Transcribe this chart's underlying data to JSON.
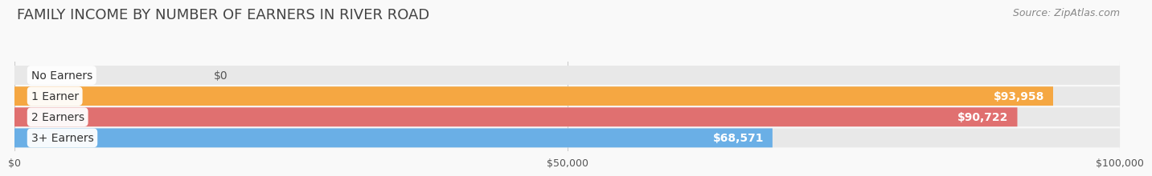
{
  "title": "FAMILY INCOME BY NUMBER OF EARNERS IN RIVER ROAD",
  "source": "Source: ZipAtlas.com",
  "categories": [
    "No Earners",
    "1 Earner",
    "2 Earners",
    "3+ Earners"
  ],
  "values": [
    0,
    93958,
    90722,
    68571
  ],
  "bar_colors": [
    "#f892b0",
    "#f5a742",
    "#e07070",
    "#6aafe6"
  ],
  "bar_bg_color": "#e8e8e8",
  "xlim": [
    0,
    100000
  ],
  "xticks": [
    0,
    50000,
    100000
  ],
  "xtick_labels": [
    "$0",
    "$50,000",
    "$100,000"
  ],
  "value_labels": [
    "$0",
    "$93,958",
    "$90,722",
    "$68,571"
  ],
  "bg_color": "#f9f9f9",
  "bar_height": 0.52,
  "title_fontsize": 13,
  "label_fontsize": 10,
  "value_fontsize": 10,
  "tick_fontsize": 9,
  "source_fontsize": 9
}
